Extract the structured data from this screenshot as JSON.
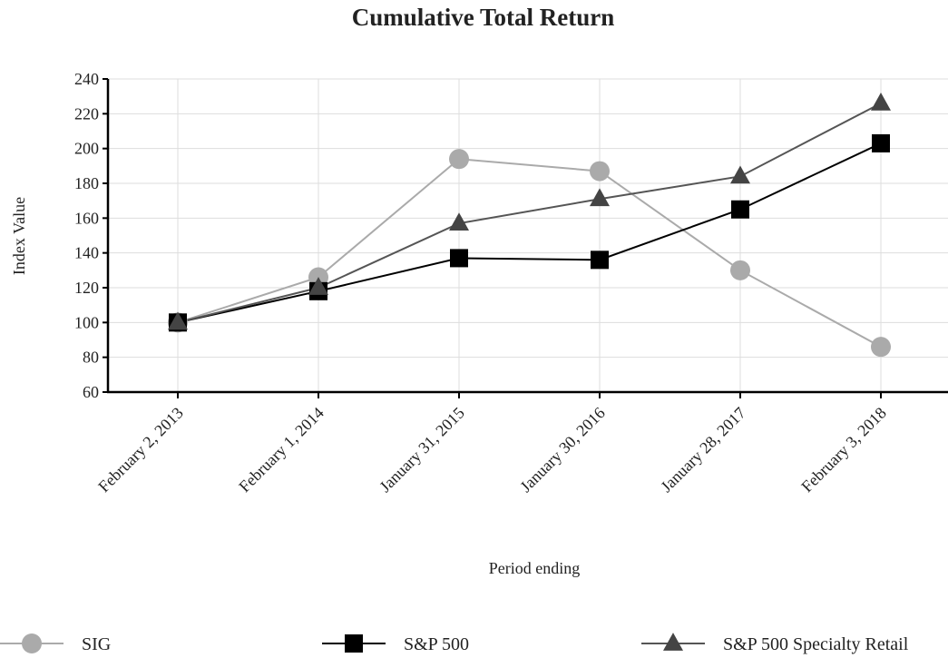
{
  "chart_data": {
    "type": "line",
    "title": "Cumulative Total Return",
    "xlabel": "Period ending",
    "ylabel": "Index Value",
    "categories": [
      "February 2, 2013",
      "February 1, 2014",
      "January 31, 2015",
      "January 30, 2016",
      "January 28, 2017",
      "February 3, 2018"
    ],
    "ylim": [
      60,
      240
    ],
    "yticks": [
      60,
      80,
      100,
      120,
      140,
      160,
      180,
      200,
      220,
      240
    ],
    "grid": true,
    "legend_position": "bottom",
    "series": [
      {
        "name": "SIG",
        "values": [
          100,
          126,
          194,
          187,
          130,
          86
        ],
        "marker": "circle",
        "color": "#aaaaaa",
        "line_color": "#aaaaaa"
      },
      {
        "name": "S&P 500",
        "values": [
          100,
          118,
          137,
          136,
          165,
          203
        ],
        "marker": "square",
        "color": "#000000",
        "line_color": "#000000"
      },
      {
        "name": "S&P 500 Specialty Retail",
        "values": [
          100,
          120,
          157,
          171,
          184,
          226
        ],
        "marker": "triangle",
        "color": "#444444",
        "line_color": "#555555"
      }
    ]
  }
}
